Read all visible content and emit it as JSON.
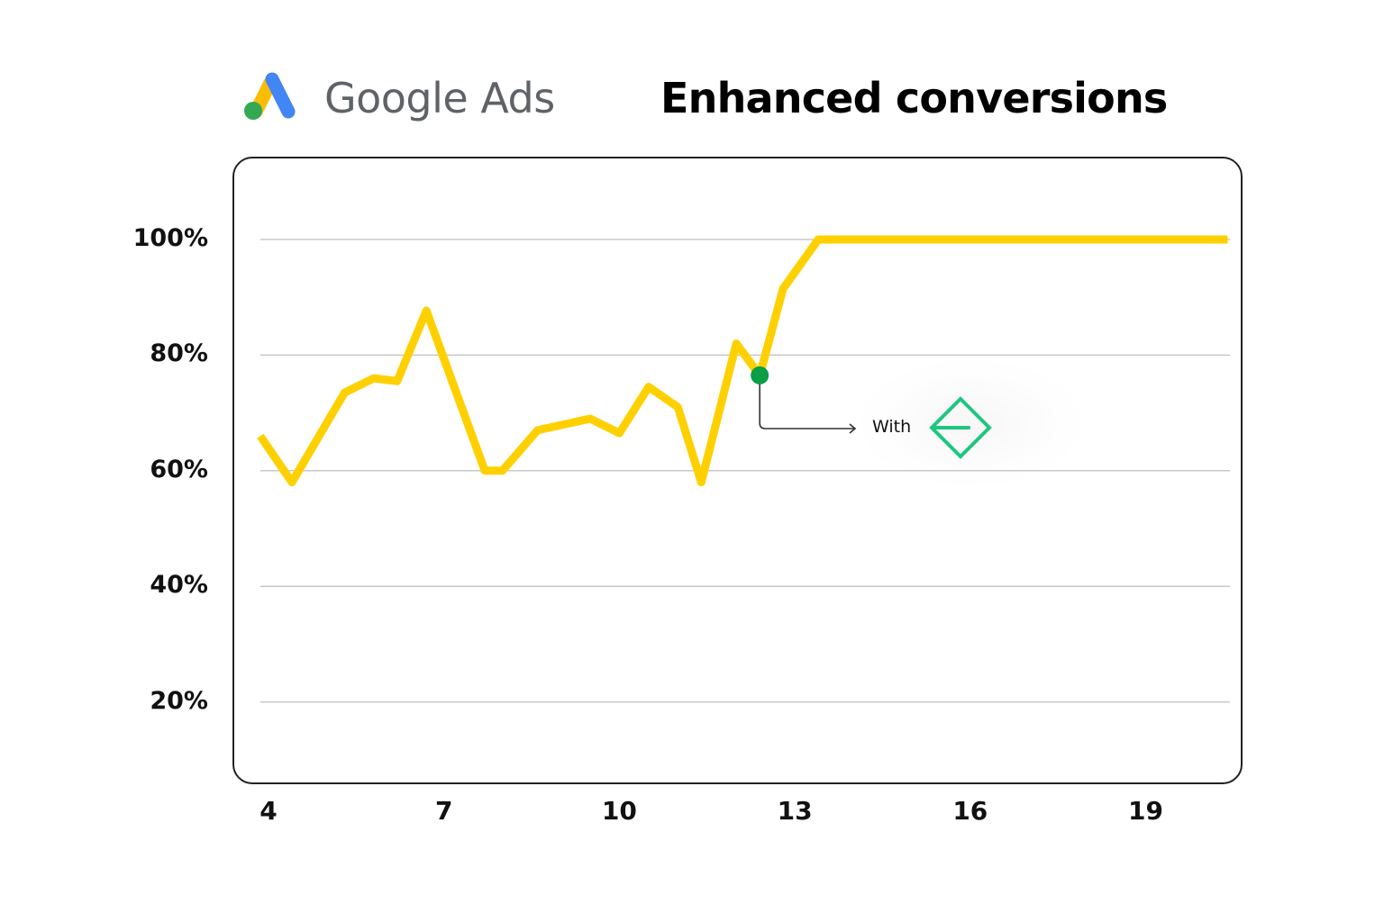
{
  "header": {
    "brand": "Google Ads",
    "brand_logo_icon": "google-ads-logo-icon",
    "title": "Enhanced conversions"
  },
  "colors": {
    "line": "#FFD000",
    "marker": "#0A9E45",
    "gridline": "#C8C8C8",
    "frame": "#222222",
    "logo_blue": "#4285F4",
    "logo_yellow": "#FBBC04",
    "logo_green": "#34A853",
    "brand_text": "#5F6368",
    "annotation_icon": "#1DC77F"
  },
  "annotation": {
    "text": "With",
    "icon": "diamond-arrow-logo-icon"
  },
  "chart_data": {
    "type": "line",
    "title": "Enhanced conversions",
    "xlabel": "",
    "ylabel": "",
    "x_ticks": [
      "4",
      "7",
      "10",
      "13",
      "16",
      "19"
    ],
    "y_ticks": [
      "100%",
      "80%",
      "60%",
      "40%",
      "20%"
    ],
    "ylim": [
      5,
      115
    ],
    "xlim": [
      3.7,
      20.6
    ],
    "grid": true,
    "legend": null,
    "series": [
      {
        "name": "Enhanced conversions",
        "x": [
          3.86,
          4.4,
          5.3,
          5.8,
          6.2,
          6.7,
          7.7,
          8.0,
          8.6,
          9.5,
          10.0,
          10.5,
          11.0,
          11.4,
          12.0,
          12.4,
          12.8,
          13.4,
          20.4
        ],
        "values": [
          66,
          58,
          73.5,
          76,
          75.5,
          87.7,
          60,
          60,
          67,
          69,
          66.5,
          74.5,
          71,
          58,
          82,
          76.5,
          91.5,
          100,
          100
        ]
      }
    ],
    "annotations": [
      {
        "x": 12.4,
        "y": 76.5,
        "marker": "green-dot",
        "label": "With",
        "icon": "diamond-arrow-logo"
      }
    ]
  }
}
